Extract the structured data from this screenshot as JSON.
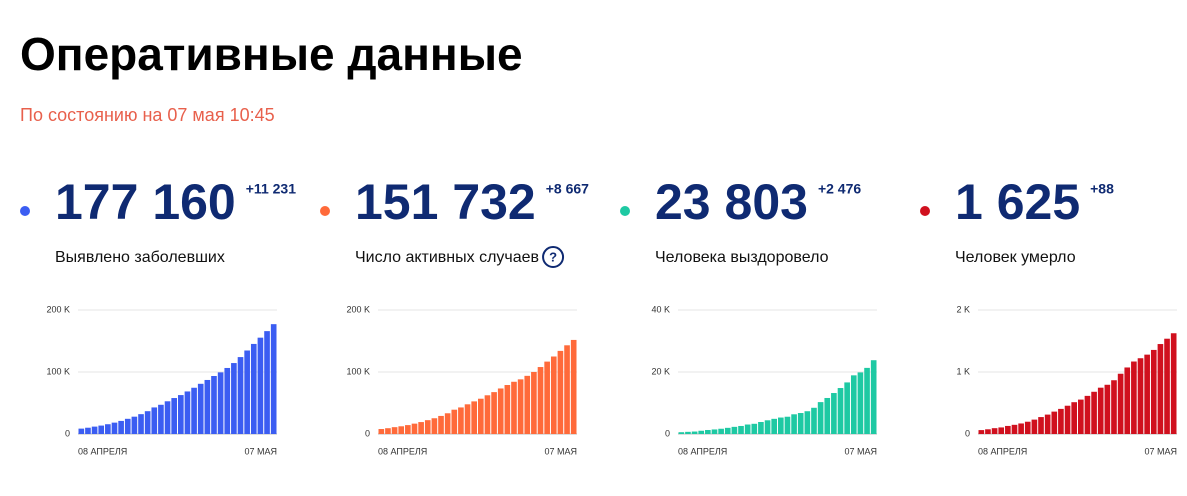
{
  "title": "Оперативные данные",
  "subtitle": "По состоянию на 07 мая 10:45",
  "stats": [
    {
      "value": "177 160",
      "delta": "+11 231",
      "label": "Выявлено заболевших"
    },
    {
      "value": "151 732",
      "delta": "+8 667",
      "label": "Число активных случаев",
      "help": "?"
    },
    {
      "value": "23 803",
      "delta": "+2 476",
      "label": "Человека выздоровело"
    },
    {
      "value": "1 625",
      "delta": "+88",
      "label": "Человек умерло"
    }
  ],
  "chart_data": [
    {
      "type": "bar",
      "color": "#3b5df2",
      "categories": [
        "08 АПРЕЛЯ",
        null,
        null,
        null,
        null,
        null,
        null,
        null,
        null,
        null,
        null,
        null,
        null,
        null,
        null,
        null,
        null,
        null,
        null,
        null,
        null,
        null,
        null,
        null,
        null,
        null,
        null,
        null,
        null,
        "07 МАЯ"
      ],
      "values": [
        8672,
        10131,
        11917,
        13584,
        15770,
        18328,
        21102,
        24490,
        27938,
        32008,
        36793,
        42853,
        47121,
        52763,
        57999,
        62773,
        68622,
        74588,
        80949,
        87147,
        93558,
        99399,
        106498,
        114431,
        124054,
        134687,
        145268,
        155370,
        165929,
        177160
      ],
      "ylim": [
        0,
        200000
      ],
      "yticks": [
        0,
        {
          "value": 100000,
          "label": "100 K"
        },
        {
          "value": 200000,
          "label": "200 K"
        }
      ],
      "grid": true
    },
    {
      "type": "bar",
      "color": "#ff6a3a",
      "categories": [
        "08 АПРЕЛЯ",
        null,
        null,
        null,
        null,
        null,
        null,
        null,
        null,
        null,
        null,
        null,
        null,
        null,
        null,
        null,
        null,
        null,
        null,
        null,
        null,
        null,
        null,
        null,
        null,
        null,
        null,
        null,
        null,
        "07 МАЯ"
      ],
      "values": [
        8029,
        9357,
        11029,
        12433,
        14349,
        16710,
        19238,
        22306,
        25402,
        29145,
        33423,
        39201,
        42843,
        47887,
        52595,
        56910,
        62439,
        67551,
        73435,
        79007,
        84235,
        88141,
        93806,
        100042,
        108002,
        116768,
        124989,
        134054,
        143065,
        151732
      ],
      "ylim": [
        0,
        200000
      ],
      "yticks": [
        0,
        {
          "value": 100000,
          "label": "100 K"
        },
        {
          "value": 200000,
          "label": "200 K"
        }
      ],
      "grid": true
    },
    {
      "type": "bar",
      "color": "#1ec9a3",
      "categories": [
        "08 АПРЕЛЯ",
        null,
        null,
        null,
        null,
        null,
        null,
        null,
        null,
        null,
        null,
        null,
        null,
        null,
        null,
        null,
        null,
        null,
        null,
        null,
        null,
        null,
        null,
        null,
        null,
        null,
        null,
        null,
        null,
        "07 МАЯ"
      ],
      "values": [
        580,
        698,
        794,
        1045,
        1291,
        1470,
        1694,
        1986,
        2304,
        2590,
        3057,
        3291,
        3873,
        4420,
        4891,
        5308,
        5568,
        6356,
        6767,
        7346,
        8456,
        10286,
        11619,
        13220,
        14830,
        16639,
        18923,
        19865,
        21327,
        23803
      ],
      "ylim": [
        0,
        40000
      ],
      "yticks": [
        0,
        {
          "value": 20000,
          "label": "20 K"
        },
        {
          "value": 40000,
          "label": "40 K"
        }
      ],
      "grid": true
    },
    {
      "type": "bar",
      "color": "#d0101e",
      "categories": [
        "08 АПРЕЛЯ",
        null,
        null,
        null,
        null,
        null,
        null,
        null,
        null,
        null,
        null,
        null,
        null,
        null,
        null,
        null,
        null,
        null,
        null,
        null,
        null,
        null,
        null,
        null,
        null,
        null,
        null,
        null,
        null,
        "07 МАЯ"
      ],
      "values": [
        63,
        76,
        94,
        106,
        130,
        148,
        170,
        198,
        232,
        273,
        313,
        361,
        405,
        456,
        513,
        555,
        615,
        681,
        747,
        794,
        867,
        972,
        1073,
        1169,
        1222,
        1280,
        1356,
        1451,
        1537,
        1625
      ],
      "ylim": [
        0,
        2000
      ],
      "yticks": [
        0,
        {
          "value": 1000,
          "label": "1 K"
        },
        {
          "value": 2000,
          "label": "2 K"
        }
      ],
      "grid": true
    }
  ]
}
